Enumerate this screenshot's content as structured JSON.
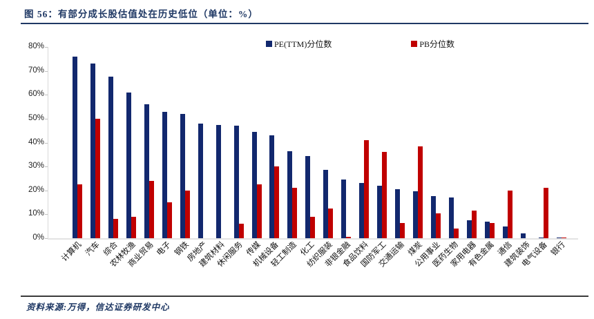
{
  "figure": {
    "title": "图 56：有部分成长股估值处在历史低位（单位：%）",
    "source": "资料来源:万得，信达证券研发中心"
  },
  "colors": {
    "title": "#1F3864",
    "pe_bar": "#12286E",
    "pb_bar": "#C00000",
    "axis_line": "#D9D9D9",
    "rule": "#1F3864"
  },
  "chart_data": {
    "type": "bar",
    "title": "图 56：有部分成长股估值处在历史低位（单位：%）",
    "categories": [
      "计算机",
      "汽车",
      "综合",
      "农林牧渔",
      "商业贸易",
      "电子",
      "钢铁",
      "房地产",
      "建筑材料",
      "休闲服务",
      "传媒",
      "机械设备",
      "轻工制造",
      "化工",
      "纺织服装",
      "非银金融",
      "食品饮料",
      "国防军工",
      "交通运输",
      "煤炭",
      "公用事业",
      "医药生物",
      "家用电器",
      "有色金属",
      "通信",
      "建筑装饰",
      "电气设备",
      "银行"
    ],
    "series": [
      {
        "name": "PE(TTM)分位数",
        "color": "#12286E",
        "values": [
          76,
          73,
          67.5,
          61,
          56,
          53,
          52,
          48,
          47.5,
          47,
          44.5,
          43,
          36.5,
          34.5,
          28.5,
          24.5,
          23,
          22,
          20.5,
          19.5,
          17.5,
          17,
          7.5,
          7,
          5,
          2,
          0.3,
          0.3
        ]
      },
      {
        "name": "PB分位数",
        "color": "#C00000",
        "values": [
          22.5,
          50,
          8,
          9,
          24,
          15,
          20,
          0,
          0,
          6,
          22.5,
          30,
          21,
          9,
          12.5,
          0.5,
          41,
          36,
          6.5,
          38.5,
          10.5,
          4,
          11.5,
          6.5,
          20,
          0,
          21,
          0.2
        ]
      }
    ],
    "xlabel": "",
    "ylabel": "",
    "ylim": [
      0,
      80
    ],
    "ytick_labels": [
      "80%",
      "70%",
      "60%",
      "50%",
      "40%",
      "30%",
      "20%",
      "10%",
      "0%"
    ],
    "grid": false,
    "legend_position": "top-center"
  }
}
